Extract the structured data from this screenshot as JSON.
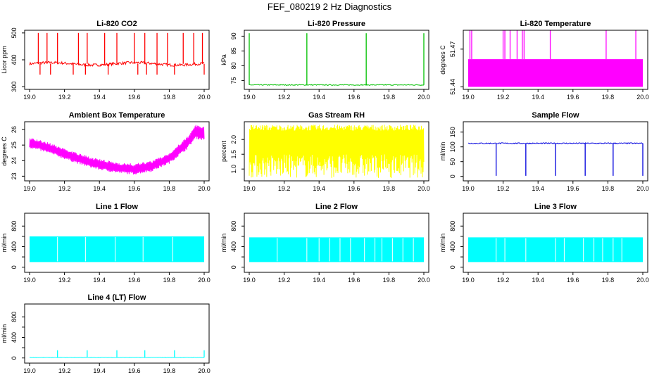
{
  "page": {
    "title": "FEF_080219  2 Hz Diagnostics"
  },
  "chart_data": [
    {
      "type": "line",
      "id": "co2",
      "title": "Li-820 CO2",
      "ylabel": "Licor ppm",
      "color": "#ff0000",
      "xlim": [
        19.0,
        20.0
      ],
      "xticks": [
        19.0,
        19.2,
        19.4,
        19.6,
        19.8,
        20.0
      ],
      "xtick_labels": [
        "19.0",
        "19.2",
        "19.4",
        "19.6",
        "19.8",
        "20.0"
      ],
      "ylim": [
        290,
        510
      ],
      "yticks": [
        300,
        400,
        500
      ],
      "ytick_labels": [
        "300",
        "400",
        "500"
      ],
      "series": {
        "baseline": 385,
        "noise": 5,
        "slope": 15,
        "spikes_up": [
          19.05,
          19.1,
          19.16,
          19.28,
          19.33,
          19.43,
          19.5,
          19.6,
          19.66,
          19.73,
          19.79,
          19.88,
          19.94,
          19.99
        ],
        "spike_up_value": 500,
        "spikes_down": [
          19.06,
          19.12,
          19.25,
          19.32,
          19.45,
          19.62,
          19.67,
          19.73,
          19.83,
          20.0
        ],
        "spike_down_value": 345
      }
    },
    {
      "type": "line",
      "id": "pressure",
      "title": "Li-820 Pressure",
      "ylabel": "kPa",
      "color": "#00c000",
      "xlim": [
        19.0,
        20.0
      ],
      "xticks": [
        19.0,
        19.2,
        19.4,
        19.6,
        19.8,
        20.0
      ],
      "xtick_labels": [
        "19.0",
        "19.2",
        "19.4",
        "19.6",
        "19.8",
        "20.0"
      ],
      "ylim": [
        72,
        92
      ],
      "yticks": [
        75,
        80,
        85,
        90
      ],
      "ytick_labels": [
        "75",
        "80",
        "85",
        "90"
      ],
      "series": {
        "baseline": 73.5,
        "noise": 0.15,
        "spikes_up": [
          19.0,
          19.33,
          19.67,
          20.0
        ],
        "spike_up_value": 91
      }
    },
    {
      "type": "band",
      "id": "temperature",
      "title": "Li-820 Temperature",
      "ylabel": "degrees C",
      "color": "#ff00ff",
      "xlim": [
        19.0,
        20.0
      ],
      "xticks": [
        19.0,
        19.2,
        19.4,
        19.6,
        19.8,
        20.0
      ],
      "xtick_labels": [
        "19.0",
        "19.2",
        "19.4",
        "19.6",
        "19.8",
        "20.0"
      ],
      "ylim": [
        51.438,
        51.485
      ],
      "yticks": [
        51.44,
        51.47
      ],
      "ytick_labels": [
        "51.44",
        "51.47"
      ],
      "series": {
        "band_low": 51.44,
        "band_high": 51.462,
        "spikes_up": [
          19.01,
          19.02,
          19.2,
          19.21,
          19.24,
          19.28,
          19.31,
          19.32,
          19.47,
          19.79,
          19.96
        ],
        "spike_up_value": 51.485
      }
    },
    {
      "type": "envelope",
      "id": "ambient",
      "title": "Ambient Box Temperature",
      "ylabel": "degrees C",
      "color": "#ff00ff",
      "xlim": [
        19.0,
        20.0
      ],
      "xticks": [
        19.0,
        19.2,
        19.4,
        19.6,
        19.8,
        20.0
      ],
      "xtick_labels": [
        "19.0",
        "19.2",
        "19.4",
        "19.6",
        "19.8",
        "20.0"
      ],
      "ylim": [
        22.7,
        26.5
      ],
      "yticks": [
        23,
        24,
        25,
        26
      ],
      "ytick_labels": [
        "23",
        "24",
        "25",
        "26"
      ],
      "series": {
        "x": [
          19.0,
          19.1,
          19.2,
          19.3,
          19.4,
          19.5,
          19.6,
          19.7,
          19.8,
          19.9,
          19.95,
          20.0
        ],
        "low": [
          24.8,
          24.5,
          24.1,
          23.7,
          23.4,
          23.2,
          23.1,
          23.3,
          23.8,
          24.7,
          25.4,
          25.3
        ],
        "high": [
          25.5,
          25.2,
          24.8,
          24.4,
          24.1,
          23.9,
          23.8,
          24.0,
          24.5,
          25.5,
          26.3,
          26.2
        ]
      }
    },
    {
      "type": "noise",
      "id": "rh",
      "title": "Gas Stream RH",
      "ylabel": "percent",
      "color": "#ffff00",
      "xlim": [
        19.0,
        20.0
      ],
      "xticks": [
        19.0,
        19.2,
        19.4,
        19.6,
        19.8,
        20.0
      ],
      "xtick_labels": [
        "19.0",
        "19.2",
        "19.4",
        "19.6",
        "19.8",
        "20.0"
      ],
      "ylim": [
        0.6,
        2.6
      ],
      "yticks": [
        1.0,
        1.5,
        2.0
      ],
      "ytick_labels": [
        "1.0",
        "1.5",
        "2.0"
      ],
      "series": {
        "low": 0.7,
        "high": 2.5,
        "dense_low": 1.5,
        "dense_high": 2.3
      }
    },
    {
      "type": "line",
      "id": "sample",
      "title": "Sample Flow",
      "ylabel": "ml/min",
      "color": "#0000dd",
      "xlim": [
        19.0,
        20.0
      ],
      "xticks": [
        19.0,
        19.2,
        19.4,
        19.6,
        19.8,
        20.0
      ],
      "xtick_labels": [
        "19.0",
        "19.2",
        "19.4",
        "19.6",
        "19.8",
        "20.0"
      ],
      "ylim": [
        -15,
        185
      ],
      "yticks": [
        0,
        50,
        100,
        150
      ],
      "ytick_labels": [
        "0",
        "50",
        "100",
        "150"
      ],
      "series": {
        "baseline": 112,
        "noise": 2,
        "spikes_down": [
          19.16,
          19.33,
          19.5,
          19.67,
          19.83,
          20.0
        ],
        "spike_down_value": 2
      }
    },
    {
      "type": "band",
      "id": "line1",
      "title": "Line 1 Flow",
      "ylabel": "ml/min",
      "color": "#00ffff",
      "xlim": [
        19.0,
        20.0
      ],
      "xticks": [
        19.0,
        19.2,
        19.4,
        19.6,
        19.8,
        20.0
      ],
      "xtick_labels": [
        "19.0",
        "19.2",
        "19.4",
        "19.6",
        "19.8",
        "20.0"
      ],
      "ylim": [
        -100,
        1050
      ],
      "yticks": [
        0,
        200,
        400,
        600,
        800
      ],
      "ytick_labels": [
        "0",
        "",
        "400",
        "",
        "800"
      ],
      "series": {
        "band_low": 100,
        "band_high": 600,
        "gaps": [
          19.16,
          19.32,
          19.49,
          19.65,
          19.82
        ]
      }
    },
    {
      "type": "band",
      "id": "line2",
      "title": "Line 2 Flow",
      "ylabel": "ml/min",
      "color": "#00ffff",
      "xlim": [
        19.0,
        20.0
      ],
      "xticks": [
        19.0,
        19.2,
        19.4,
        19.6,
        19.8,
        20.0
      ],
      "xtick_labels": [
        "19.0",
        "19.2",
        "19.4",
        "19.6",
        "19.8",
        "20.0"
      ],
      "ylim": [
        -100,
        1050
      ],
      "yticks": [
        0,
        200,
        400,
        600,
        800
      ],
      "ytick_labels": [
        "0",
        "",
        "400",
        "",
        "800"
      ],
      "series": {
        "band_low": 100,
        "band_high": 580,
        "gaps": [
          19.16,
          19.33,
          19.4,
          19.46,
          19.52,
          19.58,
          19.66,
          19.72,
          19.76,
          19.82,
          19.88,
          19.94
        ]
      }
    },
    {
      "type": "band",
      "id": "line3",
      "title": "Line 3 Flow",
      "ylabel": "ml/min",
      "color": "#00ffff",
      "xlim": [
        19.0,
        20.0
      ],
      "xticks": [
        19.0,
        19.2,
        19.4,
        19.6,
        19.8,
        20.0
      ],
      "xtick_labels": [
        "19.0",
        "19.2",
        "19.4",
        "19.6",
        "19.8",
        "20.0"
      ],
      "ylim": [
        -100,
        1050
      ],
      "yticks": [
        0,
        200,
        400,
        600,
        800
      ],
      "ytick_labels": [
        "0",
        "",
        "400",
        "",
        "800"
      ],
      "series": {
        "band_low": 100,
        "band_high": 580,
        "gaps": [
          19.16,
          19.21,
          19.33,
          19.5,
          19.55,
          19.66,
          19.72,
          19.77,
          19.83,
          19.88
        ]
      }
    },
    {
      "type": "line",
      "id": "line4",
      "title": "Line 4 (LT) Flow",
      "ylabel": "ml/min",
      "color": "#00ffff",
      "xlim": [
        19.0,
        20.0
      ],
      "xticks": [
        19.0,
        19.2,
        19.4,
        19.6,
        19.8,
        20.0
      ],
      "xtick_labels": [
        "19.0",
        "19.2",
        "19.4",
        "19.6",
        "19.8",
        "20.0"
      ],
      "ylim": [
        -100,
        1050
      ],
      "yticks": [
        0,
        200,
        400,
        600,
        800
      ],
      "ytick_labels": [
        "0",
        "",
        "400",
        "",
        "800"
      ],
      "series": {
        "baseline": 10,
        "noise": 4,
        "spikes_up": [
          19.16,
          19.33,
          19.5,
          19.66,
          19.83,
          20.0
        ],
        "spike_up_value": 150
      }
    }
  ]
}
